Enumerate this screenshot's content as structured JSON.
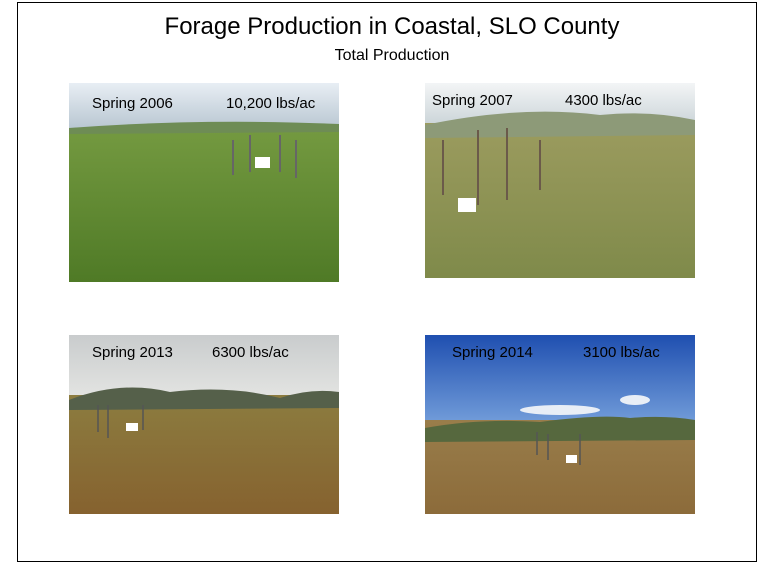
{
  "slide": {
    "title": "Forage Production in Coastal, SLO County",
    "subtitle": "Total Production",
    "photos": [
      {
        "season": "Spring 2006",
        "production": "10,200 lbs/ac"
      },
      {
        "season": "Spring 2007",
        "production": "4300 lbs/ac"
      },
      {
        "season": "Spring 2013",
        "production": "6300 lbs/ac"
      },
      {
        "season": "Spring 2014",
        "production": "3100 lbs/ac"
      }
    ]
  }
}
